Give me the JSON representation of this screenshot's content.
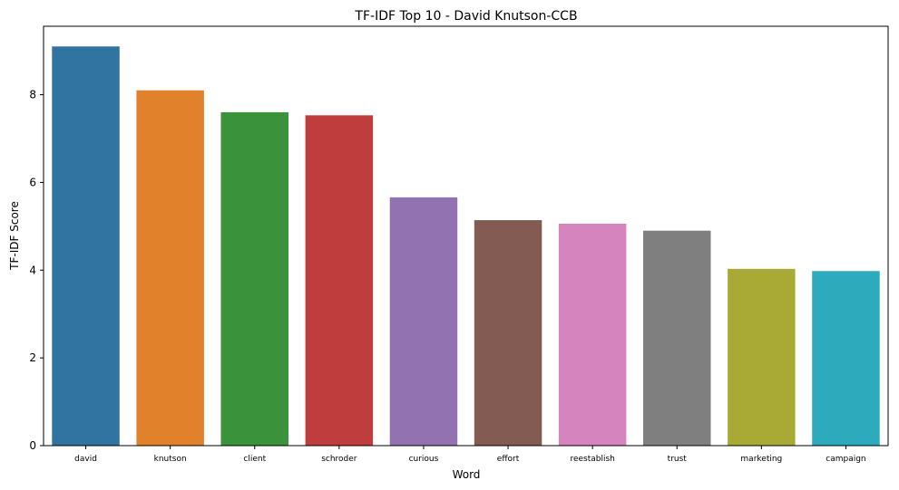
{
  "chart_data": {
    "type": "bar",
    "title": "TF-IDF Top 10 - David Knutson-CCB",
    "xlabel": "Word",
    "ylabel": "TF-IDF Score",
    "categories": [
      "david",
      "knutson",
      "client",
      "schroder",
      "curious",
      "effort",
      "reestablish",
      "trust",
      "marketing",
      "campaign"
    ],
    "values": [
      9.1,
      8.1,
      7.6,
      7.53,
      5.66,
      5.14,
      5.06,
      4.9,
      4.03,
      3.98
    ],
    "colors": [
      "#3274a1",
      "#e1812c",
      "#3a923a",
      "#c03d3e",
      "#9372b2",
      "#845b53",
      "#d684bd",
      "#7f7f7f",
      "#a9aa35",
      "#2eaabd"
    ],
    "ylim": [
      0,
      9.56
    ],
    "yticks": [
      0,
      2,
      4,
      6,
      8
    ],
    "grid": false,
    "legend": "none"
  }
}
